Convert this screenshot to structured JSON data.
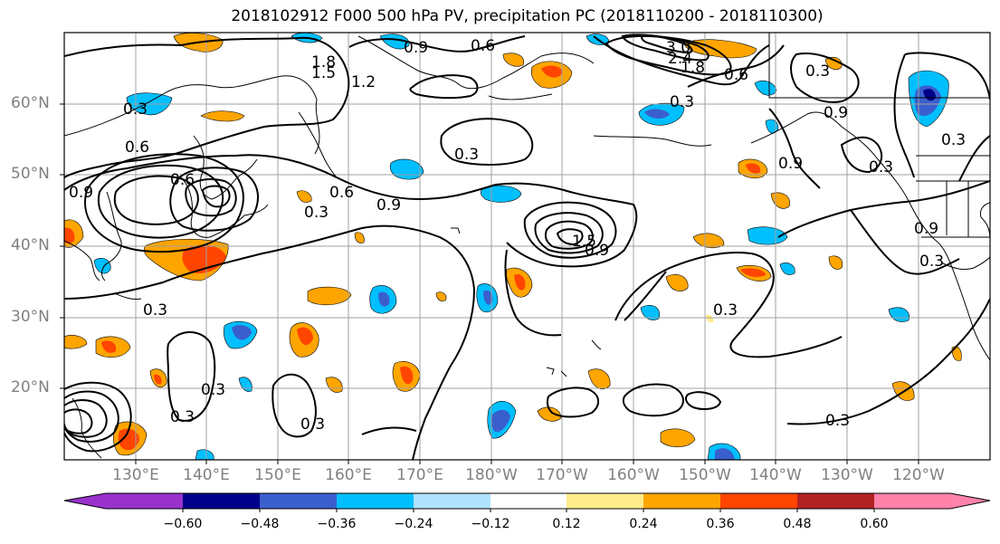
{
  "title": "2018102912 F000 500 hPa PV, precipitation PC (2018110200 - 2018110300)",
  "latitude_labels": [
    "60°N",
    "50°N",
    "40°N",
    "30°N",
    "20°N"
  ],
  "longitude_labels": [
    "130°E",
    "140°E",
    "150°E",
    "160°E",
    "170°E",
    "180°W",
    "170°W",
    "160°W",
    "150°W",
    "140°W",
    "130°W",
    "120°W"
  ],
  "contour_labels": [
    "0.6",
    "0.9",
    "1.8",
    "1.5",
    "1.2",
    "3.0",
    "2.4",
    "1.8",
    "0.6",
    "0.3",
    "0.3",
    "0.3",
    "0.6",
    "0.6",
    "0.9",
    "0.3",
    "0.9",
    "0.9",
    "0.3",
    "0.9",
    "0.3",
    "0.3",
    "1.5",
    "0.9",
    "0.3",
    "0.3",
    "0.3",
    "0.3",
    "0.3",
    "0.3",
    "0.9",
    "0.3",
    "0.6"
  ],
  "colorbar": {
    "tick_labels": [
      "−0.60",
      "−0.48",
      "−0.36",
      "−0.24",
      "−0.12",
      "0.12",
      "0.24",
      "0.36",
      "0.48",
      "0.60"
    ],
    "colors": [
      "#9932cc",
      "#00008b",
      "#3a5fcd",
      "#00bfff",
      "#b0e2ff",
      "#ffffff",
      "#ffec8b",
      "#ffa500",
      "#ff4500",
      "#b22222",
      "#ff82ab"
    ]
  },
  "colors": {
    "contour": "#000000",
    "coastline": "#000000",
    "grid": "#a0a0a0",
    "axis_labels": "#808080"
  }
}
